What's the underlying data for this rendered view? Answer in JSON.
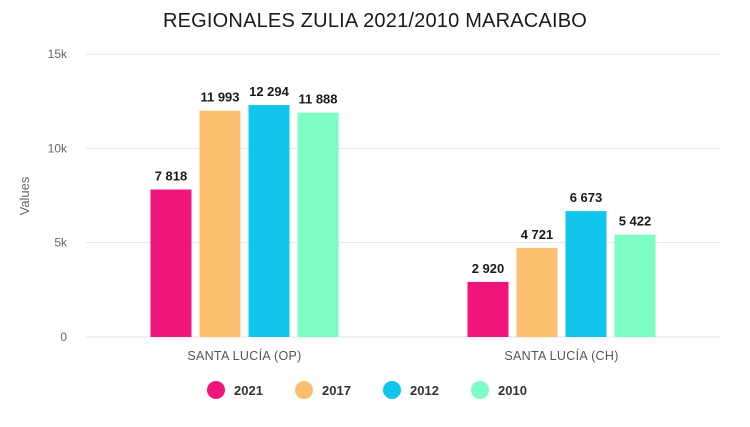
{
  "chart_data": {
    "type": "bar",
    "title": "REGIONALES ZULIA 2021/2010 MARACAIBO",
    "xlabel": "",
    "ylabel": "Values",
    "ylim": [
      0,
      15000
    ],
    "yticks": [
      0,
      5000,
      10000,
      15000
    ],
    "ytick_labels": [
      "0",
      "5k",
      "10k",
      "15k"
    ],
    "categories": [
      "SANTA LUCÍA (OP)",
      "SANTA LUCÍA (CH)"
    ],
    "series": [
      {
        "name": "2021",
        "values": [
          7818,
          2920
        ],
        "labels": [
          "7 818",
          "2 920"
        ],
        "color": "#f0157a"
      },
      {
        "name": "2017",
        "values": [
          11993,
          4721
        ],
        "labels": [
          "11 993",
          "4 721"
        ],
        "color": "#fbbf6e"
      },
      {
        "name": "2012",
        "values": [
          12294,
          6673
        ],
        "labels": [
          "12 294",
          "6 673"
        ],
        "color": "#11c6ea"
      },
      {
        "name": "2010",
        "values": [
          11888,
          5422
        ],
        "labels": [
          "11 888",
          "5 422"
        ],
        "color": "#7dfcc4"
      }
    ],
    "grid": true,
    "legend_position": "bottom"
  }
}
